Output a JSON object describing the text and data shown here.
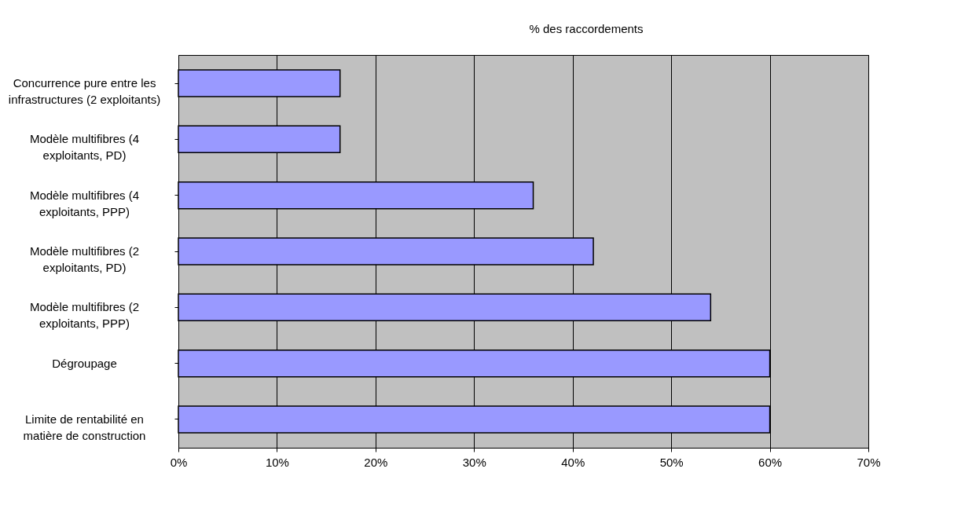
{
  "chart_data": {
    "type": "bar",
    "orientation": "horizontal",
    "title": "% des raccordements",
    "categories": [
      "Concurrence pure entre les infrastructures (2 exploitants)",
      "Modèle multifibres (4 exploitants, PD)",
      "Modèle multifibres (4 exploitants, PPP)",
      "Modèle multifibres (2 exploitants, PD)",
      "Modèle multifibres (2 exploitants, PPP)",
      "Dégroupage",
      "Limite de rentabilité en matière de construction"
    ],
    "values": [
      16.4,
      16.4,
      36,
      42.1,
      54,
      60,
      60
    ],
    "color": "#9999ff",
    "xlim": [
      0,
      70
    ],
    "xticks": [
      {
        "value": 0,
        "label": "0%"
      },
      {
        "value": 10,
        "label": "10%"
      },
      {
        "value": 20,
        "label": "20%"
      },
      {
        "value": 30,
        "label": "30%"
      },
      {
        "value": 40,
        "label": "40%"
      },
      {
        "value": 50,
        "label": "50%"
      },
      {
        "value": 60,
        "label": "60%"
      },
      {
        "value": 70,
        "label": "70%"
      }
    ],
    "grid": "x"
  }
}
